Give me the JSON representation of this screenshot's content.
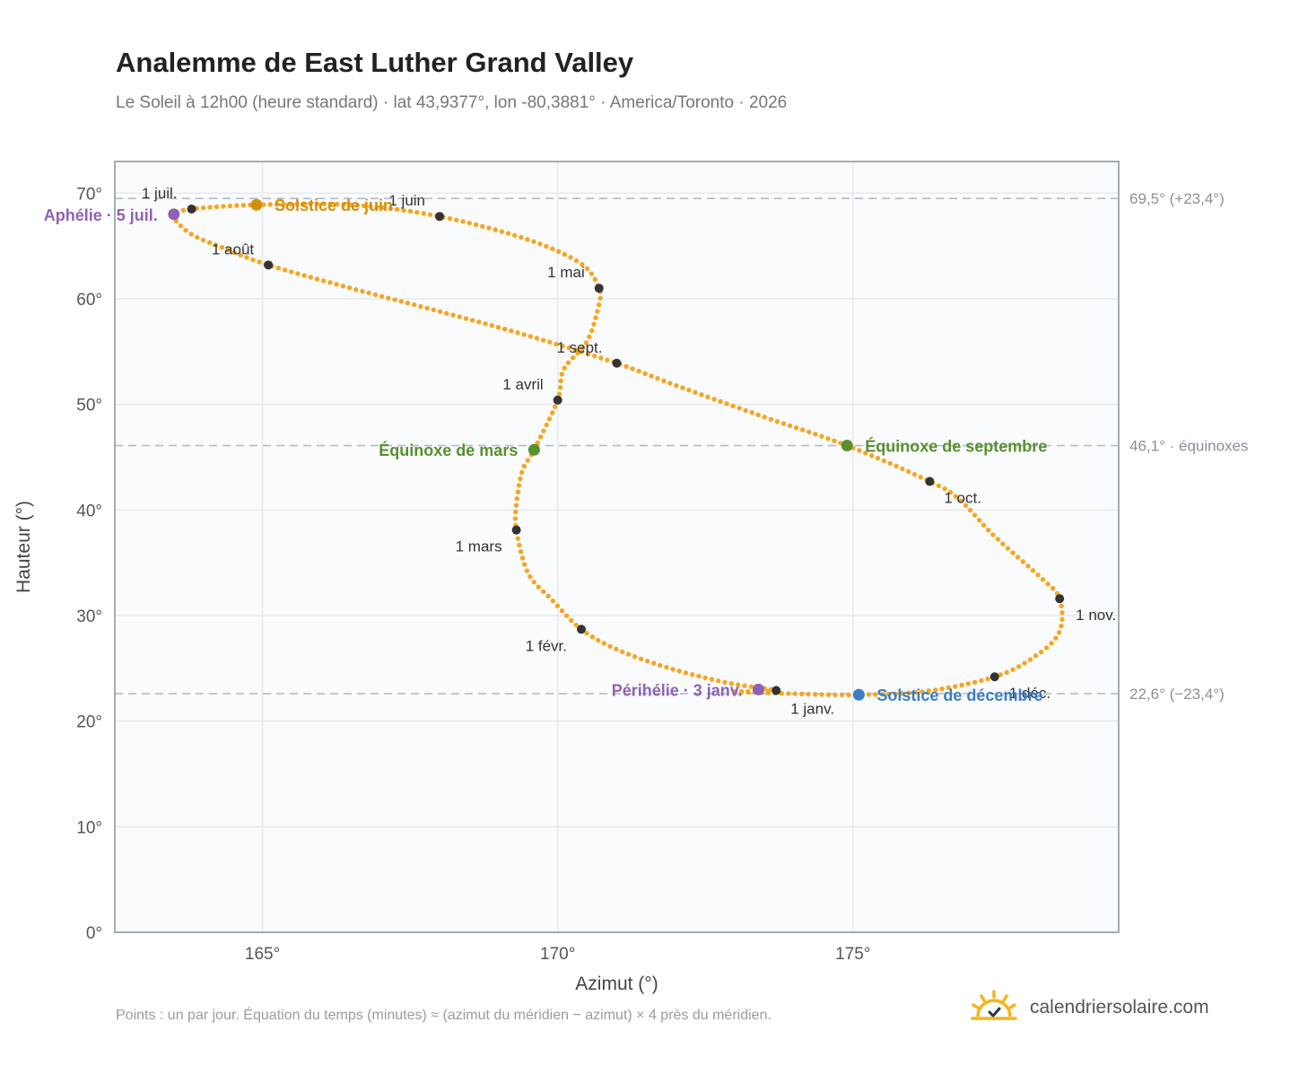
{
  "header": {
    "title": "Analemme de East Luther Grand Valley",
    "subtitle": "Le Soleil à 12h00 (heure standard) · lat 43,9377°, lon -80,3881° · America/Toronto · 2026"
  },
  "footer": {
    "note": "Points : un par jour. Équation du temps (minutes) ≈ (azimut du méridien − azimut) × 4 près du méridien.",
    "brand": "calendriersolaire.com"
  },
  "chart_data": {
    "type": "scatter",
    "xlabel": "Azimut (°)",
    "ylabel": "Hauteur (°)",
    "xlim": [
      162.5,
      179.5
    ],
    "ylim": [
      0,
      73
    ],
    "xticks": [
      165,
      170,
      175
    ],
    "xtick_labels": [
      "165°",
      "170°",
      "175°"
    ],
    "yticks": [
      0,
      10,
      20,
      30,
      40,
      50,
      60,
      70
    ],
    "ytick_labels": [
      "0°",
      "10°",
      "20°",
      "30°",
      "40°",
      "50°",
      "60°",
      "70°"
    ],
    "grid": true,
    "colors": {
      "curve": "#f5a623",
      "month": "#333333",
      "june": "#d4900a",
      "equinox": "#5a8f2e",
      "december": "#3d7cc4",
      "apsis": "#8e62b5",
      "refline": "#b0bec8",
      "plot_bg": "#f9fbfd",
      "grid": "#e6eaee",
      "frame": "#9aa3ad"
    },
    "reference_lines": [
      {
        "y": 69.5,
        "label": "69,5° (+23,4°)"
      },
      {
        "y": 46.1,
        "label": "46,1° · équinoxes"
      },
      {
        "y": 22.6,
        "label": "22,6° (−23,4°)"
      }
    ],
    "curve_anchors": [
      [
        173.0,
        22.8
      ],
      [
        174.0,
        22.6
      ],
      [
        175.0,
        22.5
      ],
      [
        176.2,
        22.8
      ],
      [
        177.4,
        24.2
      ],
      [
        178.1,
        26.2
      ],
      [
        178.5,
        28.5
      ],
      [
        178.5,
        31.6
      ],
      [
        178.2,
        33.5
      ],
      [
        177.4,
        37.5
      ],
      [
        176.8,
        41.0
      ],
      [
        176.3,
        42.7
      ],
      [
        174.9,
        46.1
      ],
      [
        173.5,
        48.8
      ],
      [
        172.0,
        51.8
      ],
      [
        171.0,
        53.9
      ],
      [
        169.5,
        56.5
      ],
      [
        168.0,
        58.8
      ],
      [
        166.5,
        61.0
      ],
      [
        165.1,
        63.2
      ],
      [
        164.3,
        64.9
      ],
      [
        163.8,
        66.1
      ],
      [
        163.5,
        67.6
      ],
      [
        163.5,
        68.0
      ],
      [
        163.8,
        68.5
      ],
      [
        164.9,
        68.9
      ],
      [
        166.5,
        68.9
      ],
      [
        168.0,
        67.8
      ],
      [
        169.5,
        65.6
      ],
      [
        170.4,
        63.3
      ],
      [
        170.7,
        61.0
      ],
      [
        170.7,
        59.5
      ],
      [
        170.5,
        56.0
      ],
      [
        170.1,
        53.3
      ],
      [
        170.0,
        50.4
      ],
      [
        169.6,
        45.7
      ],
      [
        169.4,
        43.7
      ],
      [
        169.3,
        40.5
      ],
      [
        169.3,
        38.1
      ],
      [
        169.5,
        34.0
      ],
      [
        169.9,
        31.5
      ],
      [
        170.4,
        28.7
      ],
      [
        171.0,
        26.8
      ],
      [
        171.9,
        25.0
      ],
      [
        172.9,
        23.6
      ],
      [
        173.7,
        22.9
      ]
    ],
    "month_markers": [
      {
        "label": "1 janv.",
        "x": 173.7,
        "y": 22.9,
        "pos": "below"
      },
      {
        "label": "1 févr.",
        "x": 170.4,
        "y": 28.7,
        "pos": "below-left"
      },
      {
        "label": "1 mars",
        "x": 169.3,
        "y": 38.1,
        "pos": "below-left"
      },
      {
        "label": "1 avril",
        "x": 170.0,
        "y": 50.4,
        "pos": "above-left"
      },
      {
        "label": "1 mai",
        "x": 170.7,
        "y": 61.0,
        "pos": "above-left"
      },
      {
        "label": "1 juin",
        "x": 168.0,
        "y": 67.8,
        "pos": "above-left"
      },
      {
        "label": "1 juil.",
        "x": 163.8,
        "y": 68.5,
        "pos": "above-left"
      },
      {
        "label": "1 août",
        "x": 165.1,
        "y": 63.2,
        "pos": "above-left"
      },
      {
        "label": "1 sept.",
        "x": 171.0,
        "y": 53.9,
        "pos": "above-left"
      },
      {
        "label": "1 oct.",
        "x": 176.3,
        "y": 42.7,
        "pos": "below-right"
      },
      {
        "label": "1 nov.",
        "x": 178.5,
        "y": 31.6,
        "pos": "right"
      },
      {
        "label": "1 déc.",
        "x": 177.4,
        "y": 24.2,
        "pos": "below-right"
      }
    ],
    "events": [
      {
        "label": "Solstice de juin",
        "x": 164.9,
        "y": 68.9,
        "color": "#d4900a",
        "pos": "right"
      },
      {
        "label": "Aphélie · 5 juil.",
        "x": 163.5,
        "y": 68.0,
        "color": "#8e62b5",
        "pos": "left"
      },
      {
        "label": "Équinoxe de mars",
        "x": 169.6,
        "y": 45.7,
        "color": "#5a8f2e",
        "pos": "left"
      },
      {
        "label": "Équinoxe de septembre",
        "x": 174.9,
        "y": 46.1,
        "color": "#5a8f2e",
        "pos": "right"
      },
      {
        "label": "Périhélie · 3 janv.",
        "x": 173.4,
        "y": 23.0,
        "color": "#8e62b5",
        "pos": "left"
      },
      {
        "label": "Solstice de décembre",
        "x": 175.1,
        "y": 22.5,
        "color": "#3d7cc4",
        "pos": "right"
      }
    ]
  }
}
